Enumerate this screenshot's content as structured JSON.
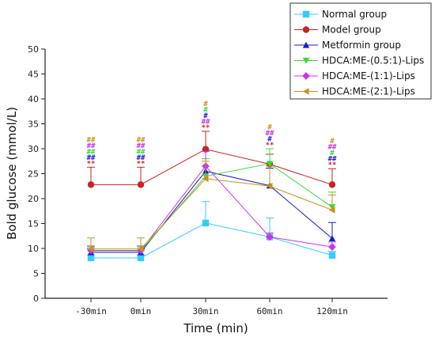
{
  "chart_data": {
    "type": "line",
    "xlabel": "Time (min)",
    "ylabel": "Bold glucose (mmol/L)",
    "categories": [
      "-30min",
      "0min",
      "30min",
      "60min",
      "120min"
    ],
    "ylim": [
      0,
      50
    ],
    "yticks": [
      0,
      5,
      10,
      15,
      20,
      25,
      30,
      35,
      40,
      45,
      50
    ],
    "legend_position": "top-right",
    "grid": false,
    "series": [
      {
        "name": "Normal group",
        "color": "#33ccff",
        "marker": "square",
        "values": [
          8.1,
          8.1,
          15.1,
          12.3,
          8.6
        ],
        "errors": [
          0.6,
          0.6,
          4.3,
          3.8,
          0.8
        ]
      },
      {
        "name": "Model group",
        "color": "#cc2222",
        "marker": "circle",
        "values": [
          22.8,
          22.8,
          29.9,
          26.9,
          22.8
        ],
        "errors": [
          3.5,
          3.5,
          3.6,
          2.0,
          3.2
        ]
      },
      {
        "name": "Metformin group",
        "color": "#1a1acc",
        "marker": "triangle-up",
        "values": [
          9.2,
          9.2,
          25.5,
          22.6,
          12.0
        ],
        "errors": [
          0.7,
          0.7,
          4.0,
          3.5,
          3.2
        ]
      },
      {
        "name": "HDCA:ME-(0.5:1)-Lips",
        "color": "#33dd33",
        "marker": "triangle-down",
        "values": [
          9.5,
          9.5,
          24.5,
          27.0,
          18.3
        ],
        "errors": [
          0.8,
          0.8,
          3.5,
          3.0,
          3.0
        ]
      },
      {
        "name": "HDCA:ME-(1:1)-Lips",
        "color": "#cc33ee",
        "marker": "diamond",
        "values": [
          9.6,
          9.6,
          26.5,
          12.3,
          10.3
        ],
        "errors": [
          0.9,
          0.9,
          3.0,
          0.8,
          1.0
        ]
      },
      {
        "name": "HDCA:ME-(2:1)-Lips",
        "color": "#c8921a",
        "marker": "triangle-left",
        "values": [
          9.9,
          9.9,
          24.0,
          22.5,
          17.7
        ],
        "errors": [
          2.2,
          2.2,
          3.5,
          4.0,
          3.0
        ]
      }
    ],
    "annotations": [
      {
        "x": "-30min",
        "marks": [
          {
            "text": "##",
            "color": "#c8921a"
          },
          {
            "text": "##",
            "color": "#cc33ee"
          },
          {
            "text": "##",
            "color": "#33dd33"
          },
          {
            "text": "##",
            "color": "#1a1acc"
          },
          {
            "text": "**",
            "color": "#cc2222"
          }
        ]
      },
      {
        "x": "0min",
        "marks": [
          {
            "text": "##",
            "color": "#c8921a"
          },
          {
            "text": "##",
            "color": "#cc33ee"
          },
          {
            "text": "##",
            "color": "#33dd33"
          },
          {
            "text": "##",
            "color": "#1a1acc"
          },
          {
            "text": "**",
            "color": "#cc2222"
          }
        ]
      },
      {
        "x": "30min",
        "marks": [
          {
            "text": "#",
            "color": "#c8921a"
          },
          {
            "text": "#",
            "color": "#33dd33"
          },
          {
            "text": "#",
            "color": "#1a1acc"
          },
          {
            "text": "##",
            "color": "#cc33ee"
          },
          {
            "text": "**",
            "color": "#cc2222"
          }
        ]
      },
      {
        "x": "60min",
        "marks": [
          {
            "text": "#",
            "color": "#c8921a"
          },
          {
            "text": "##",
            "color": "#cc33ee"
          },
          {
            "text": "#",
            "color": "#1a1acc"
          },
          {
            "text": "**",
            "color": "#cc2222"
          }
        ]
      },
      {
        "x": "120min",
        "marks": [
          {
            "text": "#",
            "color": "#c8921a"
          },
          {
            "text": "##",
            "color": "#cc33ee"
          },
          {
            "text": "#",
            "color": "#33dd33"
          },
          {
            "text": "##",
            "color": "#1a1acc"
          },
          {
            "text": "**",
            "color": "#cc2222"
          }
        ]
      }
    ]
  }
}
